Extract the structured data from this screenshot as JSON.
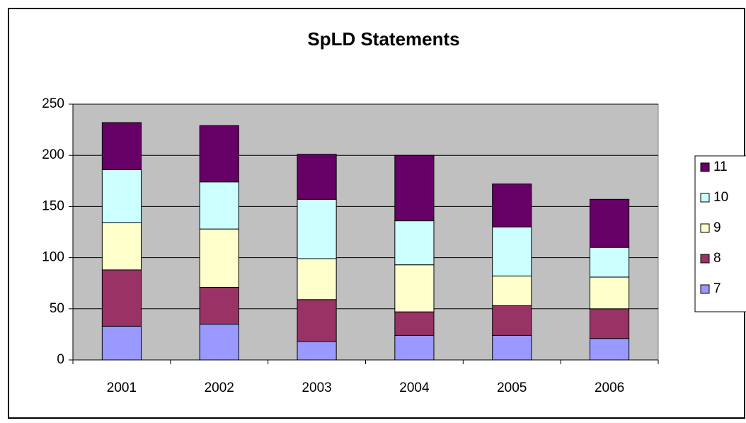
{
  "chart_data": {
    "type": "stacked_bar",
    "title": "SpLD Statements",
    "categories": [
      "2001",
      "2002",
      "2003",
      "2004",
      "2005",
      "2006"
    ],
    "series": [
      {
        "name": "7",
        "color": "#9999ff",
        "values": [
          33,
          35,
          18,
          24,
          24,
          21
        ]
      },
      {
        "name": "8",
        "color": "#993366",
        "values": [
          55,
          36,
          41,
          23,
          29,
          29
        ]
      },
      {
        "name": "9",
        "color": "#ffffcc",
        "values": [
          46,
          57,
          40,
          46,
          29,
          31
        ]
      },
      {
        "name": "10",
        "color": "#ccffff",
        "values": [
          52,
          46,
          58,
          43,
          48,
          29
        ]
      },
      {
        "name": "11",
        "color": "#660066",
        "values": [
          46,
          55,
          44,
          64,
          42,
          47
        ]
      }
    ],
    "ylim": [
      0,
      250
    ],
    "yticks": [
      0,
      50,
      100,
      150,
      200,
      250
    ],
    "grid": true,
    "legend": "right"
  }
}
